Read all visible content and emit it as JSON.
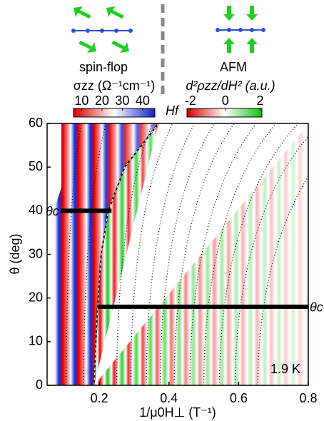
{
  "chart_data": {
    "type": "heatmap",
    "phase_labels": [
      "spin-flop",
      "AFM"
    ],
    "colorbar_left": {
      "label": "σzz (Ω⁻¹cm⁻¹)",
      "lim": [
        6,
        46
      ],
      "ticks": [
        10,
        20,
        30,
        40
      ]
    },
    "colorbar_right": {
      "label": "d²ρzz/dH² (a.u.)",
      "lim": [
        -2.2,
        2.1
      ],
      "ticks": [
        -2,
        0,
        2
      ]
    },
    "boundary_label": "Hf",
    "boundary": {
      "x": [
        0.185,
        0.19,
        0.195,
        0.205,
        0.226,
        0.273,
        0.37
      ],
      "y": [
        0,
        10,
        18,
        30,
        40,
        50,
        60
      ]
    },
    "theta_c_lines": [
      {
        "label": "θc",
        "y": 40,
        "x": [
          0.09,
          0.235
        ]
      },
      {
        "label": "θc",
        "y": 18,
        "x": [
          0.195,
          0.8
        ]
      }
    ],
    "oscillation_lines_x0": [
      0.105,
      0.155,
      0.25,
      0.29,
      0.335,
      0.375,
      0.415,
      0.46,
      0.5,
      0.545,
      0.59,
      0.655
    ],
    "annotation": "1.9 K",
    "x_label": "1/μ0H⊥ (T⁻¹)",
    "y_label": "θ (deg)",
    "xlim": [
      0.05,
      0.8
    ],
    "xticks": [
      0.2,
      0.4,
      0.6,
      0.8
    ],
    "ylim": [
      0,
      60
    ],
    "yticks": [
      0,
      10,
      20,
      30,
      40,
      50,
      60
    ]
  }
}
